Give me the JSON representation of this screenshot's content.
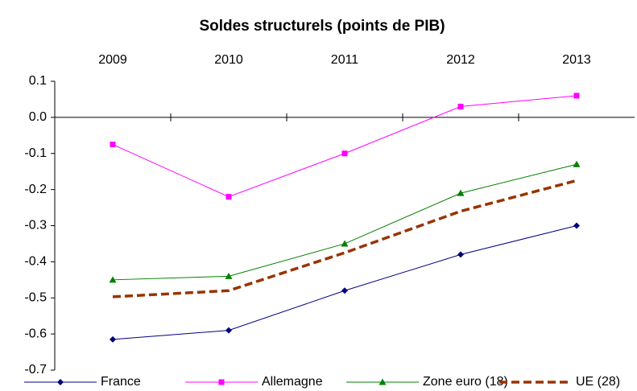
{
  "chart_data": {
    "type": "line",
    "title": "Soldes structurels (points de PIB)",
    "categories": [
      "2009",
      "2010",
      "2011",
      "2012",
      "2013"
    ],
    "series": [
      {
        "name": "France",
        "color": "#000080",
        "marker": "diamond",
        "values": [
          -0.615,
          -0.59,
          -0.48,
          -0.38,
          -0.3
        ]
      },
      {
        "name": "Allemagne",
        "color": "#ff00ff",
        "marker": "square",
        "values": [
          -0.075,
          -0.22,
          -0.1,
          0.03,
          0.06
        ]
      },
      {
        "name": "Zone euro (18)",
        "color": "#008000",
        "marker": "triangle",
        "values": [
          -0.45,
          -0.44,
          -0.35,
          -0.21,
          -0.13
        ]
      },
      {
        "name": "UE (28)",
        "color": "#993300",
        "dashed": true,
        "values": [
          -0.497,
          -0.48,
          -0.375,
          -0.26,
          -0.175
        ]
      }
    ],
    "ylim": [
      -0.7,
      0.1
    ],
    "yticks": [
      0.1,
      {
        "value": 0,
        "label": "0.0"
      },
      -0.1,
      -0.2,
      -0.3,
      -0.4,
      -0.5,
      -0.6,
      -0.7
    ],
    "grid": false,
    "legend": "bottom"
  }
}
